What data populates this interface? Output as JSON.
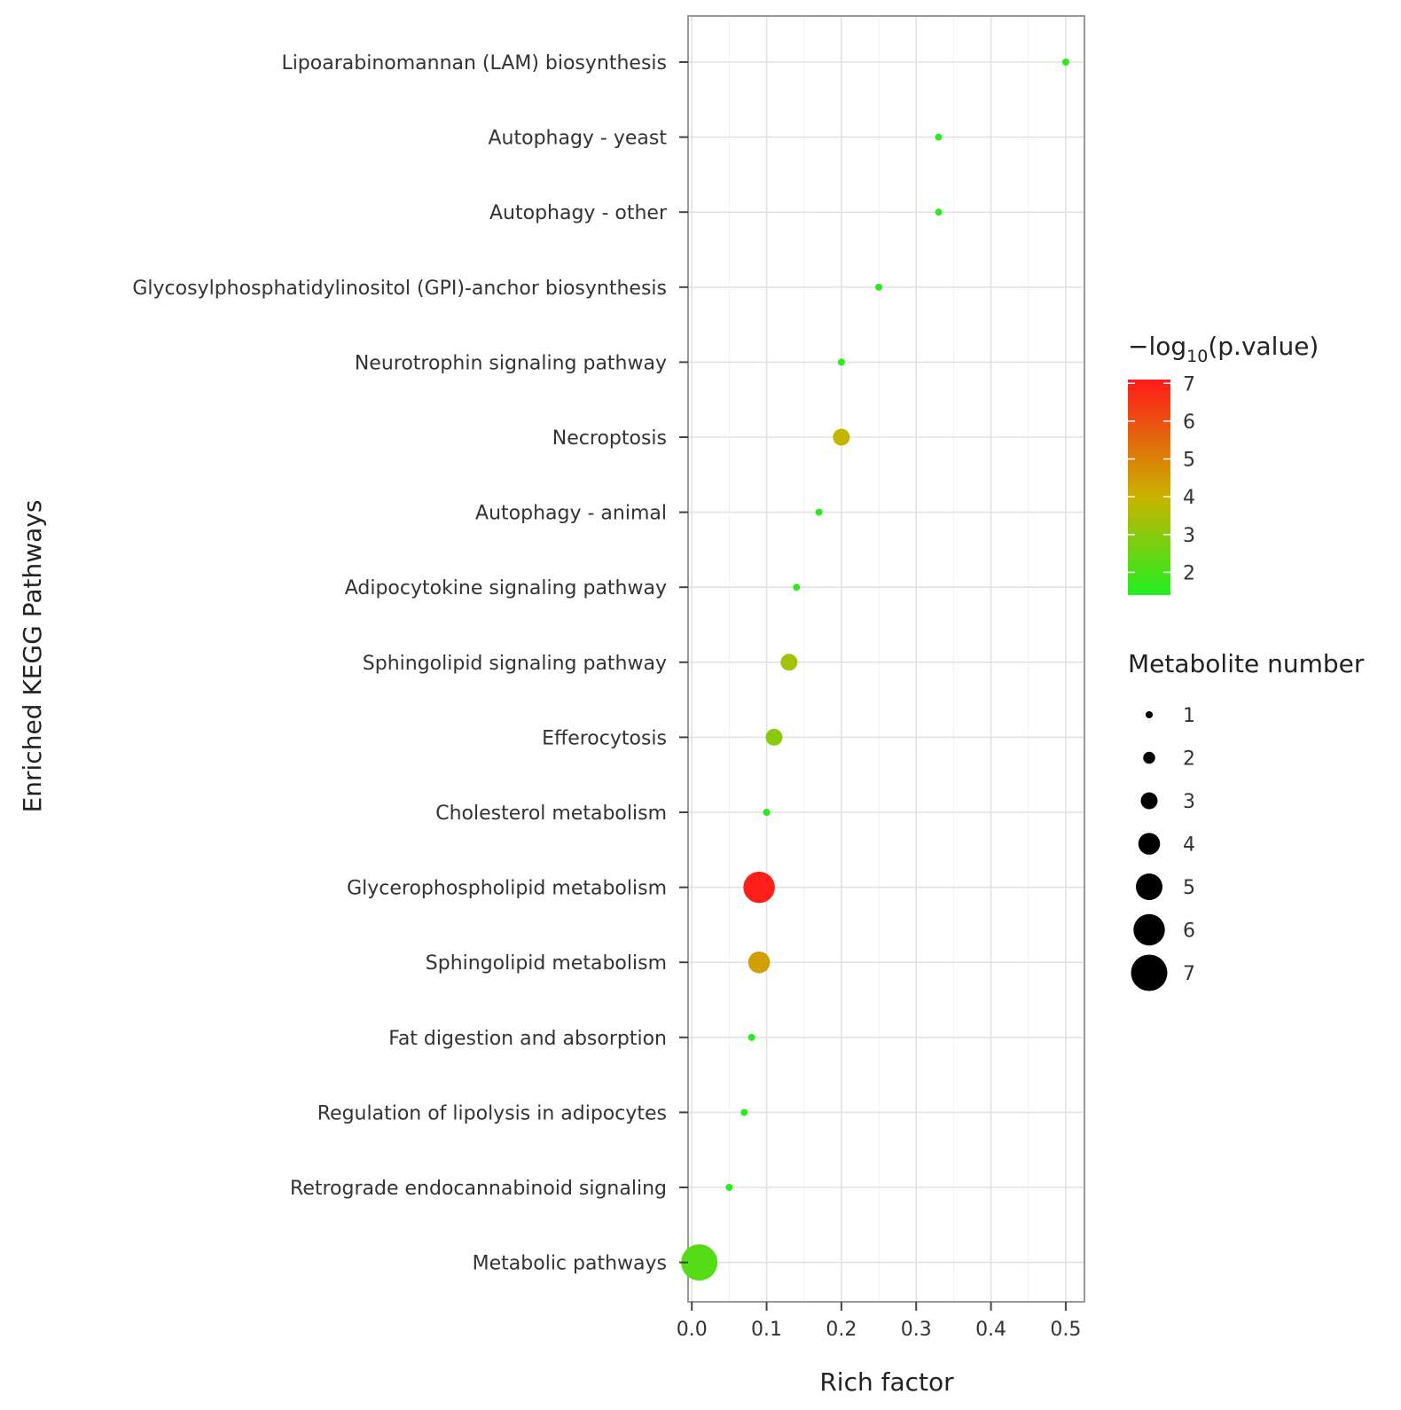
{
  "chart_data": {
    "type": "scatter",
    "subtype": "bubble",
    "xlabel": "Rich factor",
    "ylabel": "Enriched KEGG Pathways",
    "xlim": [
      -0.005,
      0.525
    ],
    "xticks": [
      "0.0",
      "0.1",
      "0.2",
      "0.3",
      "0.4",
      "0.5"
    ],
    "xtick_values": [
      0.0,
      0.1,
      0.2,
      0.3,
      0.4,
      0.5
    ],
    "grid": true,
    "points": [
      {
        "pathway": "Lipoarabinomannan (LAM) biosynthesis",
        "rich_factor": 0.5,
        "neg_log10_p": 1.6,
        "metabolite_number": 1
      },
      {
        "pathway": "Autophagy - yeast",
        "rich_factor": 0.33,
        "neg_log10_p": 1.6,
        "metabolite_number": 1
      },
      {
        "pathway": "Autophagy - other",
        "rich_factor": 0.33,
        "neg_log10_p": 1.6,
        "metabolite_number": 1
      },
      {
        "pathway": "Glycosylphosphatidylinositol (GPI)-anchor biosynthesis",
        "rich_factor": 0.25,
        "neg_log10_p": 1.6,
        "metabolite_number": 1
      },
      {
        "pathway": "Neurotrophin signaling pathway",
        "rich_factor": 0.2,
        "neg_log10_p": 1.6,
        "metabolite_number": 1
      },
      {
        "pathway": "Necroptosis",
        "rich_factor": 0.2,
        "neg_log10_p": 3.9,
        "metabolite_number": 3
      },
      {
        "pathway": "Autophagy - animal",
        "rich_factor": 0.17,
        "neg_log10_p": 1.6,
        "metabolite_number": 1
      },
      {
        "pathway": "Adipocytokine signaling pathway",
        "rich_factor": 0.14,
        "neg_log10_p": 1.6,
        "metabolite_number": 1
      },
      {
        "pathway": "Sphingolipid signaling pathway",
        "rich_factor": 0.13,
        "neg_log10_p": 3.4,
        "metabolite_number": 3
      },
      {
        "pathway": "Efferocytosis",
        "rich_factor": 0.11,
        "neg_log10_p": 3.0,
        "metabolite_number": 3
      },
      {
        "pathway": "Cholesterol metabolism",
        "rich_factor": 0.1,
        "neg_log10_p": 1.6,
        "metabolite_number": 1
      },
      {
        "pathway": "Glycerophospholipid metabolism",
        "rich_factor": 0.09,
        "neg_log10_p": 7.0,
        "metabolite_number": 6
      },
      {
        "pathway": "Sphingolipid metabolism",
        "rich_factor": 0.09,
        "neg_log10_p": 4.4,
        "metabolite_number": 4
      },
      {
        "pathway": "Fat digestion and absorption",
        "rich_factor": 0.08,
        "neg_log10_p": 1.6,
        "metabolite_number": 1
      },
      {
        "pathway": "Regulation of lipolysis in adipocytes",
        "rich_factor": 0.07,
        "neg_log10_p": 1.6,
        "metabolite_number": 1
      },
      {
        "pathway": "Retrograde endocannabinoid signaling",
        "rich_factor": 0.05,
        "neg_log10_p": 1.6,
        "metabolite_number": 1
      },
      {
        "pathway": "Metabolic pathways",
        "rich_factor": 0.01,
        "neg_log10_p": 2.2,
        "metabolite_number": 7
      }
    ],
    "color_legend": {
      "title_prefix": "−log",
      "title_subscript": "10",
      "title_suffix": "(p.value)",
      "range": [
        1.4,
        7.1
      ],
      "ticks": [
        "7",
        "6",
        "5",
        "4",
        "3",
        "2"
      ],
      "tick_values": [
        7,
        6,
        5,
        4,
        3,
        2
      ],
      "low_color": "#22ee22",
      "mid_color": "#c8b400",
      "high_color": "#ff1a1a"
    },
    "size_legend": {
      "title": "Metabolite number",
      "entries": [
        "1",
        "2",
        "3",
        "4",
        "5",
        "6",
        "7"
      ],
      "entry_values": [
        1,
        2,
        3,
        4,
        5,
        6,
        7
      ]
    }
  }
}
